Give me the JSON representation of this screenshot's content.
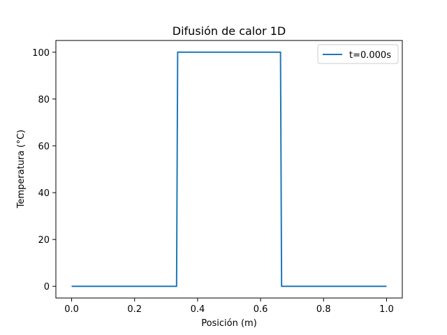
{
  "chart_data": {
    "type": "line",
    "title": "Difusión de calor 1D",
    "xlabel": "Posición (m)",
    "ylabel": "Temperatura (°C)",
    "xlim": [
      -0.05,
      1.05
    ],
    "ylim": [
      -5,
      105
    ],
    "xticks": [
      0.0,
      0.2,
      0.4,
      0.6,
      0.8,
      1.0
    ],
    "xtick_labels": [
      "0.0",
      "0.2",
      "0.4",
      "0.6",
      "0.8",
      "1.0"
    ],
    "yticks": [
      0,
      20,
      40,
      60,
      80,
      100
    ],
    "ytick_labels": [
      "0",
      "20",
      "40",
      "60",
      "80",
      "100"
    ],
    "grid": false,
    "legend_position": "top-right",
    "series": [
      {
        "name": "t=0.000s",
        "color": "#1f77b4",
        "x": [
          0.0,
          0.3333,
          0.3367,
          0.6633,
          0.6667,
          1.0
        ],
        "y": [
          0,
          0,
          100,
          100,
          0,
          0
        ]
      }
    ]
  }
}
